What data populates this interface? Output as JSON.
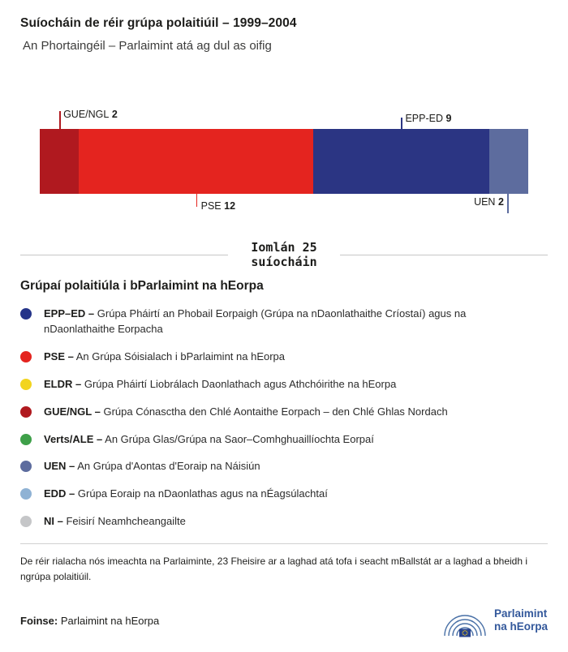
{
  "header": {
    "title": "Suíocháin de réir grúpa polaitiúil – 1999–2004",
    "subtitle": "An Phortaingéil – Parlaimint atá ag dul as oifig"
  },
  "chart_data": {
    "type": "bar",
    "variant": "horizontal-stacked-seats",
    "title": "Suíocháin de réir grúpa polaitiúil – 1999–2004",
    "subtitle": "An Phortaingéil – Parlaimint atá ag dul as oifig",
    "total": 25,
    "total_label": "Iomlán 25\nsuíocháin",
    "segments": [
      {
        "name": "GUE/NGL",
        "value": 2,
        "color": "#b0191f",
        "label_side": "top"
      },
      {
        "name": "PSE",
        "value": 12,
        "color": "#e4241f",
        "label_side": "bottom"
      },
      {
        "name": "EPP-ED",
        "value": 9,
        "color": "#2b3583",
        "label_side": "top"
      },
      {
        "name": "UEN",
        "value": 2,
        "color": "#5d6c9e",
        "label_side": "bottom"
      }
    ]
  },
  "legend": {
    "heading": "Grúpaí polaitiúla i bParlaimint na hEorpa",
    "items": [
      {
        "abbr": "EPP–ED –",
        "desc": "Grúpa Pháirtí an Phobail Eorpaigh (Grúpa na nDaonlathaithe Críostaí) agus na nDaonlathaithe Eorpacha",
        "color": "#253489"
      },
      {
        "abbr": "PSE –",
        "desc": "An Grúpa Sóisialach i bParlaimint na hEorpa",
        "color": "#e4241f"
      },
      {
        "abbr": "ELDR –",
        "desc": "Grúpa Pháirtí Liobrálach Daonlathach agus Athchóirithe na hEorpa",
        "color": "#f2d41e"
      },
      {
        "abbr": "GUE/NGL –",
        "desc": "Grúpa Cónasctha den Chlé Aontaithe Eorpach – den Chlé Ghlas Nordach",
        "color": "#b0191f"
      },
      {
        "abbr": "Verts/ALE –",
        "desc": "An Grúpa Glas/Grúpa na Saor–Comhghuaillíochta Eorpaí",
        "color": "#3ea049"
      },
      {
        "abbr": "UEN –",
        "desc": "An Grúpa d'Aontas d'Eoraip na Náisiún",
        "color": "#5d6c9e"
      },
      {
        "abbr": "EDD –",
        "desc": "Grúpa Eoraip na nDaonlathas agus na nÉagsúlachtaí",
        "color": "#8fb2d4"
      },
      {
        "abbr": "NI –",
        "desc": "Feisirí Neamhcheangailte",
        "color": "#c5c6c8"
      }
    ]
  },
  "footnote": "De réir rialacha nós imeachta na Parlaiminte, 23 Fheisire ar a laghad atá tofa i seacht mBallstát ar a laghad a bheidh i ngrúpa polaitiúil.",
  "footer": {
    "source_label": "Foinse:",
    "source_value": "Parlaimint na hEorpa",
    "logo_text": "Parlaimint\nna hEorpa"
  }
}
